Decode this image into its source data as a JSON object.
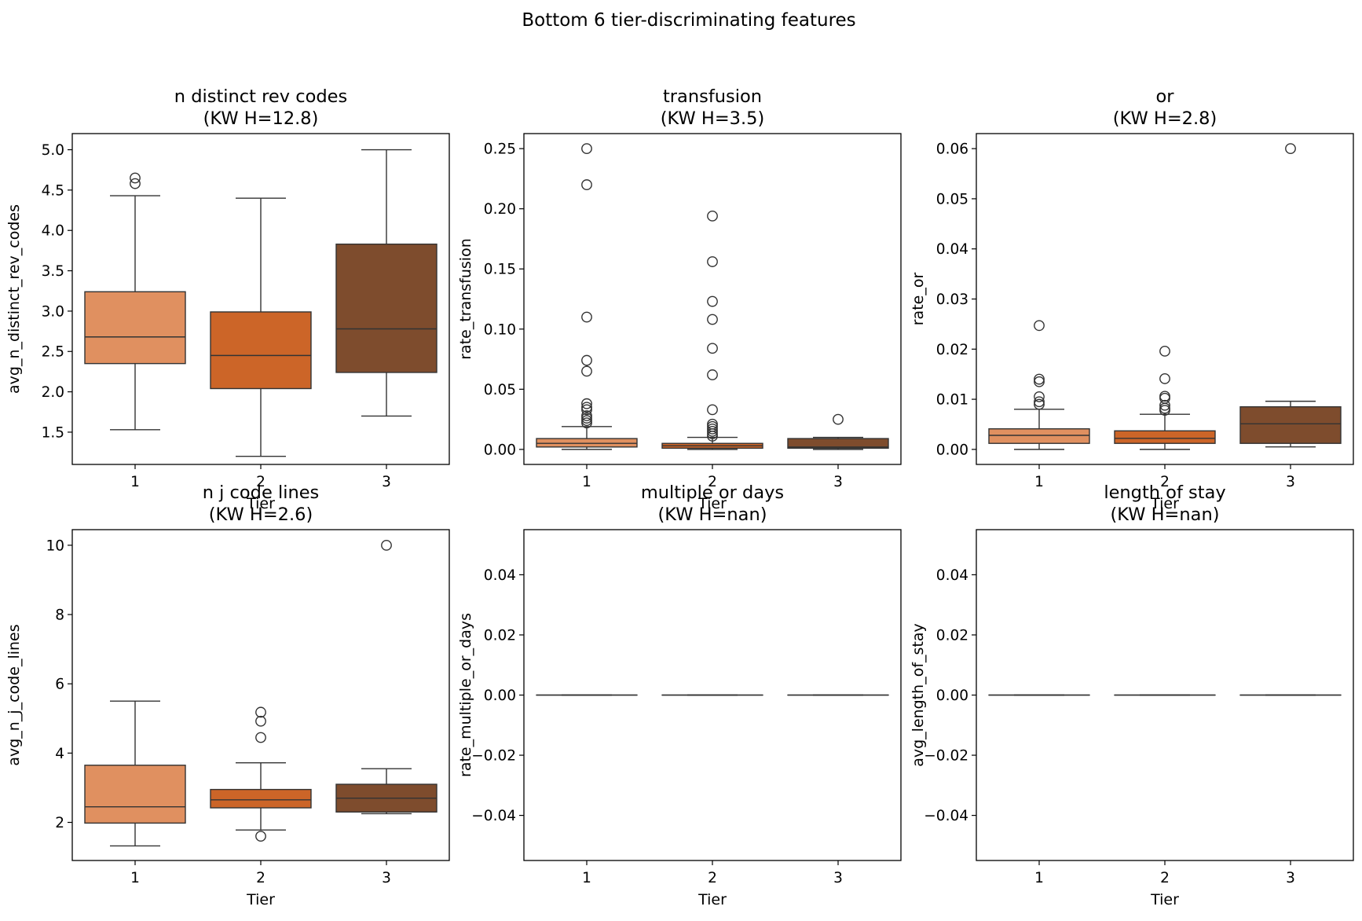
{
  "colors": {
    "tier1": "#e09060",
    "tier2": "#cc6528",
    "tier3": "#7e4c2d",
    "edge": "#333333",
    "flier": "#333333"
  },
  "chart_data": {
    "type": "box",
    "title": "Bottom 6 tier-discriminating features",
    "categories": [
      "1",
      "2",
      "3"
    ],
    "panels": [
      {
        "title_line1": "n distinct rev codes",
        "title_line2": "(KW H=12.8)",
        "xlabel": "Tier",
        "ylabel": "avg_n_distinct_rev_codes",
        "ylim": [
          1.1,
          5.2
        ],
        "yticks": [
          1.5,
          2.0,
          2.5,
          3.0,
          3.5,
          4.0,
          4.5,
          5.0
        ],
        "ytick_labels": [
          "1.5",
          "2.0",
          "2.5",
          "3.0",
          "3.5",
          "4.0",
          "4.5",
          "5.0"
        ],
        "boxes": [
          {
            "tier": "1",
            "q1": 2.35,
            "median": 2.68,
            "q3": 3.24,
            "whislo": 1.53,
            "whishi": 4.43,
            "fliers": [
              4.58,
              4.65
            ]
          },
          {
            "tier": "2",
            "q1": 2.04,
            "median": 2.45,
            "q3": 2.99,
            "whislo": 1.2,
            "whishi": 4.4,
            "fliers": []
          },
          {
            "tier": "3",
            "q1": 2.24,
            "median": 2.78,
            "q3": 3.83,
            "whislo": 1.7,
            "whishi": 5.0,
            "fliers": []
          }
        ]
      },
      {
        "title_line1": "transfusion",
        "title_line2": "(KW H=3.5)",
        "xlabel": "Tier",
        "ylabel": "rate_transfusion",
        "ylim": [
          -0.0125,
          0.2625
        ],
        "yticks": [
          0.0,
          0.05,
          0.1,
          0.15,
          0.2,
          0.25
        ],
        "ytick_labels": [
          "0.00",
          "0.05",
          "0.10",
          "0.15",
          "0.20",
          "0.25"
        ],
        "boxes": [
          {
            "tier": "1",
            "q1": 0.002,
            "median": 0.005,
            "q3": 0.009,
            "whislo": 0.0,
            "whishi": 0.019,
            "fliers": [
              0.022,
              0.024,
              0.026,
              0.028,
              0.033,
              0.035,
              0.038,
              0.065,
              0.074,
              0.11,
              0.22,
              0.25
            ]
          },
          {
            "tier": "2",
            "q1": 0.001,
            "median": 0.003,
            "q3": 0.005,
            "whislo": 0.0,
            "whishi": 0.01,
            "fliers": [
              0.011,
              0.013,
              0.015,
              0.017,
              0.019,
              0.021,
              0.033,
              0.062,
              0.084,
              0.108,
              0.123,
              0.156,
              0.194
            ]
          },
          {
            "tier": "3",
            "q1": 0.001,
            "median": 0.002,
            "q3": 0.009,
            "whislo": 0.0,
            "whishi": 0.01,
            "fliers": [
              0.025
            ]
          }
        ]
      },
      {
        "title_line1": "or",
        "title_line2": "(KW H=2.8)",
        "xlabel": "Tier",
        "ylabel": "rate_or",
        "ylim": [
          -0.003,
          0.063
        ],
        "yticks": [
          0.0,
          0.01,
          0.02,
          0.03,
          0.04,
          0.05,
          0.06
        ],
        "ytick_labels": [
          "0.00",
          "0.01",
          "0.02",
          "0.03",
          "0.04",
          "0.05",
          "0.06"
        ],
        "boxes": [
          {
            "tier": "1",
            "q1": 0.0012,
            "median": 0.0028,
            "q3": 0.0041,
            "whislo": 0.0,
            "whishi": 0.008,
            "fliers": [
              0.009,
              0.0095,
              0.0105,
              0.0135,
              0.014,
              0.0247
            ]
          },
          {
            "tier": "2",
            "q1": 0.0012,
            "median": 0.0022,
            "q3": 0.0037,
            "whislo": 0.0,
            "whishi": 0.007,
            "fliers": [
              0.0078,
              0.0082,
              0.0088,
              0.0102,
              0.0106,
              0.0141,
              0.0196
            ]
          },
          {
            "tier": "3",
            "q1": 0.0012,
            "median": 0.0051,
            "q3": 0.0085,
            "whislo": 0.0005,
            "whishi": 0.0096,
            "fliers": [
              0.06
            ]
          }
        ]
      },
      {
        "title_line1": "n j code lines",
        "title_line2": "(KW H=2.6)",
        "xlabel": "Tier",
        "ylabel": "avg_n_j_code_lines",
        "ylim": [
          0.9,
          10.45
        ],
        "yticks": [
          2,
          4,
          6,
          8,
          10
        ],
        "ytick_labels": [
          "2",
          "4",
          "6",
          "8",
          "10"
        ],
        "boxes": [
          {
            "tier": "1",
            "q1": 1.98,
            "median": 2.45,
            "q3": 3.65,
            "whislo": 1.32,
            "whishi": 5.5,
            "fliers": []
          },
          {
            "tier": "2",
            "q1": 2.42,
            "median": 2.65,
            "q3": 2.95,
            "whislo": 1.78,
            "whishi": 3.72,
            "fliers": [
              1.6,
              4.45,
              4.92,
              5.18
            ]
          },
          {
            "tier": "3",
            "q1": 2.3,
            "median": 2.7,
            "q3": 3.1,
            "whislo": 2.25,
            "whishi": 3.55,
            "fliers": [
              10.0
            ]
          }
        ]
      },
      {
        "title_line1": "multiple or days",
        "title_line2": "(KW H=nan)",
        "xlabel": "Tier",
        "ylabel": "rate_multiple_or_days",
        "ylim": [
          -0.055,
          0.055
        ],
        "yticks": [
          -0.04,
          -0.02,
          0.0,
          0.02,
          0.04
        ],
        "ytick_labels": [
          "−0.04",
          "−0.02",
          "0.00",
          "0.02",
          "0.04"
        ],
        "boxes": [
          {
            "tier": "1",
            "q1": 0,
            "median": 0,
            "q3": 0,
            "whislo": 0,
            "whishi": 0,
            "fliers": []
          },
          {
            "tier": "2",
            "q1": 0,
            "median": 0,
            "q3": 0,
            "whislo": 0,
            "whishi": 0,
            "fliers": []
          },
          {
            "tier": "3",
            "q1": 0,
            "median": 0,
            "q3": 0,
            "whislo": 0,
            "whishi": 0,
            "fliers": []
          }
        ]
      },
      {
        "title_line1": "length of stay",
        "title_line2": "(KW H=nan)",
        "xlabel": "Tier",
        "ylabel": "avg_length_of_stay",
        "ylim": [
          -0.055,
          0.055
        ],
        "yticks": [
          -0.04,
          -0.02,
          0.0,
          0.02,
          0.04
        ],
        "ytick_labels": [
          "−0.04",
          "−0.02",
          "0.00",
          "0.02",
          "0.04"
        ],
        "boxes": [
          {
            "tier": "1",
            "q1": 0,
            "median": 0,
            "q3": 0,
            "whislo": 0,
            "whishi": 0,
            "fliers": []
          },
          {
            "tier": "2",
            "q1": 0,
            "median": 0,
            "q3": 0,
            "whislo": 0,
            "whishi": 0,
            "fliers": []
          },
          {
            "tier": "3",
            "q1": 0,
            "median": 0,
            "q3": 0,
            "whislo": 0,
            "whishi": 0,
            "fliers": []
          }
        ]
      }
    ]
  }
}
